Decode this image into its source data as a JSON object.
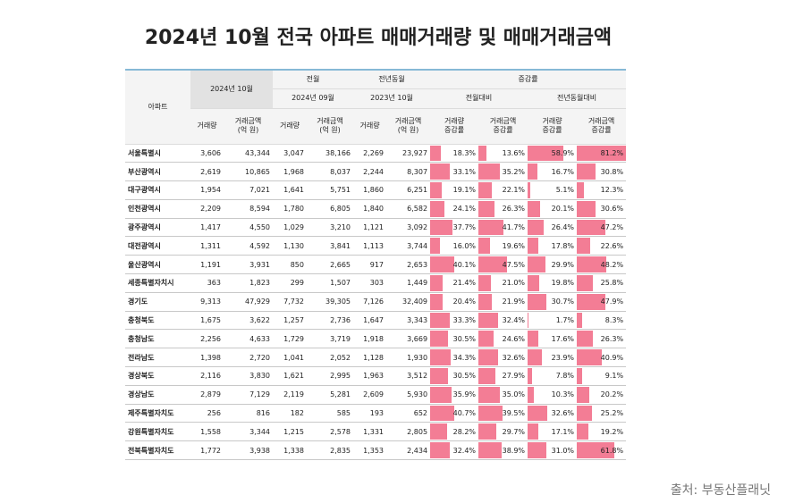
{
  "title": "2024년 10월 전국 아파트 매매거래량 및 매매거래금액",
  "source": "출처: 부동산플래닛",
  "table": {
    "header": {
      "apt": "아파트",
      "current": "2024년 10월",
      "prev_month": "전월",
      "prev_year": "전년동월",
      "change": "증감률",
      "prev_month_date": "2024년 09월",
      "prev_year_date": "2023년 10월",
      "mom": "전월대비",
      "yoy": "전년동월대비",
      "sub": [
        "거래량",
        "거래금액\n(억 원)",
        "거래량",
        "거래금액\n(억 원)",
        "거래량",
        "거래금액\n(억 원)",
        "거래량\n증감률",
        "거래금액\n증감률",
        "거래량\n증감률",
        "거래금액\n증감률"
      ]
    },
    "rows": [
      {
        "region": "서울특별시",
        "cells": [
          "3,606",
          "43,344",
          "3,047",
          "38,166",
          "2,269",
          "23,927"
        ],
        "changes": [
          {
            "value": 18.3,
            "label": "18.3%"
          },
          {
            "value": 13.6,
            "label": "13.6%"
          },
          {
            "value": 58.9,
            "label": "58.9%"
          },
          {
            "value": 81.2,
            "label": "81.2%"
          }
        ]
      },
      {
        "region": "부산광역시",
        "cells": [
          "2,619",
          "10,865",
          "1,968",
          "8,037",
          "2,244",
          "8,307"
        ],
        "changes": [
          {
            "value": 33.1,
            "label": "33.1%"
          },
          {
            "value": 35.2,
            "label": "35.2%"
          },
          {
            "value": 16.7,
            "label": "16.7%"
          },
          {
            "value": 30.8,
            "label": "30.8%"
          }
        ]
      },
      {
        "region": "대구광역시",
        "cells": [
          "1,954",
          "7,021",
          "1,641",
          "5,751",
          "1,860",
          "6,251"
        ],
        "changes": [
          {
            "value": 19.1,
            "label": "19.1%"
          },
          {
            "value": 22.1,
            "label": "22.1%"
          },
          {
            "value": 5.1,
            "label": "5.1%"
          },
          {
            "value": 12.3,
            "label": "12.3%"
          }
        ]
      },
      {
        "region": "인천광역시",
        "cells": [
          "2,209",
          "8,594",
          "1,780",
          "6,805",
          "1,840",
          "6,582"
        ],
        "changes": [
          {
            "value": 24.1,
            "label": "24.1%"
          },
          {
            "value": 26.3,
            "label": "26.3%"
          },
          {
            "value": 20.1,
            "label": "20.1%"
          },
          {
            "value": 30.6,
            "label": "30.6%"
          }
        ]
      },
      {
        "region": "광주광역시",
        "cells": [
          "1,417",
          "4,550",
          "1,029",
          "3,210",
          "1,121",
          "3,092"
        ],
        "changes": [
          {
            "value": 37.7,
            "label": "37.7%"
          },
          {
            "value": 41.7,
            "label": "41.7%"
          },
          {
            "value": 26.4,
            "label": "26.4%"
          },
          {
            "value": 47.2,
            "label": "47.2%"
          }
        ]
      },
      {
        "region": "대전광역시",
        "cells": [
          "1,311",
          "4,592",
          "1,130",
          "3,841",
          "1,113",
          "3,744"
        ],
        "changes": [
          {
            "value": 16.0,
            "label": "16.0%"
          },
          {
            "value": 19.6,
            "label": "19.6%"
          },
          {
            "value": 17.8,
            "label": "17.8%"
          },
          {
            "value": 22.6,
            "label": "22.6%"
          }
        ]
      },
      {
        "region": "울산광역시",
        "cells": [
          "1,191",
          "3,931",
          "850",
          "2,665",
          "917",
          "2,653"
        ],
        "changes": [
          {
            "value": 40.1,
            "label": "40.1%"
          },
          {
            "value": 47.5,
            "label": "47.5%"
          },
          {
            "value": 29.9,
            "label": "29.9%"
          },
          {
            "value": 48.2,
            "label": "48.2%"
          }
        ]
      },
      {
        "region": "세종특별자치시",
        "cells": [
          "363",
          "1,823",
          "299",
          "1,507",
          "303",
          "1,449"
        ],
        "changes": [
          {
            "value": 21.4,
            "label": "21.4%"
          },
          {
            "value": 21.0,
            "label": "21.0%"
          },
          {
            "value": 19.8,
            "label": "19.8%"
          },
          {
            "value": 25.8,
            "label": "25.8%"
          }
        ]
      },
      {
        "region": "경기도",
        "cells": [
          "9,313",
          "47,929",
          "7,732",
          "39,305",
          "7,126",
          "32,409"
        ],
        "changes": [
          {
            "value": 20.4,
            "label": "20.4%"
          },
          {
            "value": 21.9,
            "label": "21.9%"
          },
          {
            "value": 30.7,
            "label": "30.7%"
          },
          {
            "value": 47.9,
            "label": "47.9%"
          }
        ]
      },
      {
        "region": "충청북도",
        "cells": [
          "1,675",
          "3,622",
          "1,257",
          "2,736",
          "1,647",
          "3,343"
        ],
        "changes": [
          {
            "value": 33.3,
            "label": "33.3%"
          },
          {
            "value": 32.4,
            "label": "32.4%"
          },
          {
            "value": 1.7,
            "label": "1.7%"
          },
          {
            "value": 8.3,
            "label": "8.3%"
          }
        ]
      },
      {
        "region": "충청남도",
        "cells": [
          "2,256",
          "4,633",
          "1,729",
          "3,719",
          "1,918",
          "3,669"
        ],
        "changes": [
          {
            "value": 30.5,
            "label": "30.5%"
          },
          {
            "value": 24.6,
            "label": "24.6%"
          },
          {
            "value": 17.6,
            "label": "17.6%"
          },
          {
            "value": 26.3,
            "label": "26.3%"
          }
        ]
      },
      {
        "region": "전라남도",
        "cells": [
          "1,398",
          "2,720",
          "1,041",
          "2,052",
          "1,128",
          "1,930"
        ],
        "changes": [
          {
            "value": 34.3,
            "label": "34.3%"
          },
          {
            "value": 32.6,
            "label": "32.6%"
          },
          {
            "value": 23.9,
            "label": "23.9%"
          },
          {
            "value": 40.9,
            "label": "40.9%"
          }
        ]
      },
      {
        "region": "경상북도",
        "cells": [
          "2,116",
          "3,830",
          "1,621",
          "2,995",
          "1,963",
          "3,512"
        ],
        "changes": [
          {
            "value": 30.5,
            "label": "30.5%"
          },
          {
            "value": 27.9,
            "label": "27.9%"
          },
          {
            "value": 7.8,
            "label": "7.8%"
          },
          {
            "value": 9.1,
            "label": "9.1%"
          }
        ]
      },
      {
        "region": "경상남도",
        "cells": [
          "2,879",
          "7,129",
          "2,119",
          "5,281",
          "2,609",
          "5,930"
        ],
        "changes": [
          {
            "value": 35.9,
            "label": "35.9%"
          },
          {
            "value": 35.0,
            "label": "35.0%"
          },
          {
            "value": 10.3,
            "label": "10.3%"
          },
          {
            "value": 20.2,
            "label": "20.2%"
          }
        ]
      },
      {
        "region": "제주특별자치도",
        "cells": [
          "256",
          "816",
          "182",
          "585",
          "193",
          "652"
        ],
        "changes": [
          {
            "value": 40.7,
            "label": "40.7%"
          },
          {
            "value": 39.5,
            "label": "39.5%"
          },
          {
            "value": 32.6,
            "label": "32.6%"
          },
          {
            "value": 25.2,
            "label": "25.2%"
          }
        ]
      },
      {
        "region": "강원특별자치도",
        "cells": [
          "1,558",
          "3,344",
          "1,215",
          "2,578",
          "1,331",
          "2,805"
        ],
        "changes": [
          {
            "value": 28.2,
            "label": "28.2%"
          },
          {
            "value": 29.7,
            "label": "29.7%"
          },
          {
            "value": 17.1,
            "label": "17.1%"
          },
          {
            "value": 19.2,
            "label": "19.2%"
          }
        ]
      },
      {
        "region": "전북특별자치도",
        "cells": [
          "1,772",
          "3,938",
          "1,338",
          "2,835",
          "1,353",
          "2,434"
        ],
        "changes": [
          {
            "value": 32.4,
            "label": "32.4%"
          },
          {
            "value": 38.9,
            "label": "38.9%"
          },
          {
            "value": 31.0,
            "label": "31.0%"
          },
          {
            "value": 61.8,
            "label": "61.8%"
          }
        ]
      }
    ]
  }
}
